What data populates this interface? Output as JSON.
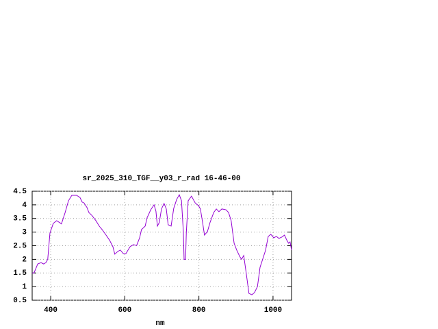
{
  "chart_data": {
    "type": "line",
    "title": "sr_2025_310_TGF__y03_r_rad 16-46-00",
    "x_label": "nm",
    "x": [
      350,
      355,
      365,
      374,
      381,
      387,
      392,
      398,
      407,
      416,
      424,
      429,
      439,
      448,
      457,
      470,
      479,
      485,
      490,
      498,
      503,
      512,
      522,
      531,
      540,
      549,
      559,
      568,
      573,
      581,
      588,
      596,
      603,
      614,
      623,
      632,
      640,
      645,
      655,
      660,
      670,
      679,
      684,
      688,
      693,
      699,
      706,
      712,
      717,
      725,
      732,
      740,
      747,
      753,
      758,
      760,
      764,
      766,
      771,
      780,
      790,
      799,
      804,
      810,
      815,
      823,
      830,
      840,
      847,
      854,
      862,
      873,
      880,
      887,
      895,
      902,
      910,
      915,
      921,
      928,
      935,
      943,
      950,
      958,
      965,
      972,
      980,
      987,
      994,
      1002,
      1009,
      1016,
      1024,
      1031,
      1037,
      1042,
      1046,
      1050
    ],
    "values": [
      1.5,
      1.5,
      1.83,
      1.88,
      1.83,
      1.88,
      2.0,
      2.97,
      3.32,
      3.42,
      3.35,
      3.3,
      3.72,
      4.15,
      4.35,
      4.35,
      4.27,
      4.1,
      4.07,
      3.9,
      3.72,
      3.6,
      3.42,
      3.22,
      3.07,
      2.9,
      2.7,
      2.46,
      2.19,
      2.29,
      2.34,
      2.21,
      2.21,
      2.46,
      2.54,
      2.51,
      2.79,
      3.09,
      3.22,
      3.52,
      3.82,
      4.0,
      3.77,
      3.22,
      3.35,
      3.85,
      4.05,
      3.85,
      3.27,
      3.22,
      3.87,
      4.2,
      4.37,
      4.15,
      3.02,
      2.0,
      2.0,
      2.97,
      4.15,
      4.32,
      4.07,
      3.97,
      3.85,
      3.35,
      2.89,
      3.02,
      3.35,
      3.72,
      3.85,
      3.75,
      3.85,
      3.82,
      3.72,
      3.42,
      2.59,
      2.34,
      2.11,
      2.0,
      2.14,
      1.46,
      0.75,
      0.7,
      0.78,
      1.0,
      1.71,
      2.0,
      2.34,
      2.84,
      2.92,
      2.79,
      2.84,
      2.77,
      2.82,
      2.89,
      2.71,
      2.59,
      2.64,
      2.34
    ],
    "color": "#9400d3",
    "xlim": [
      350,
      1050
    ],
    "xticks": [
      400,
      600,
      800,
      1000
    ],
    "ylim": [
      0.5,
      4.5
    ],
    "yticks": [
      0.5,
      1,
      1.5,
      2,
      2.5,
      3,
      3.5,
      4,
      4.5
    ],
    "grid": true
  }
}
